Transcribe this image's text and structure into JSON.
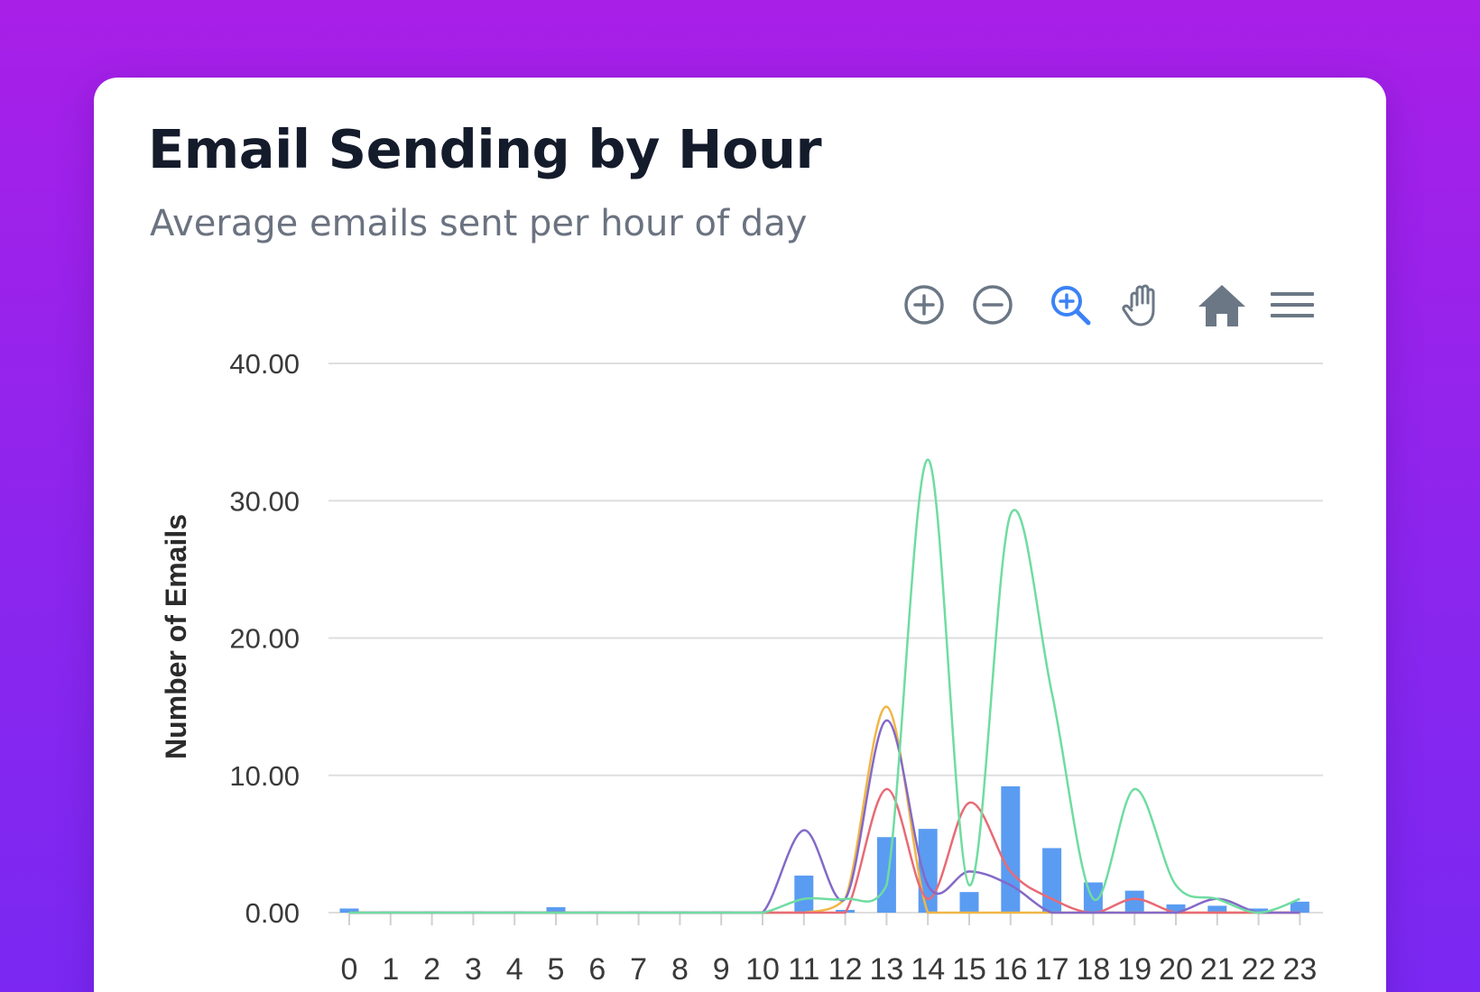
{
  "header": {
    "title": "Email Sending by Hour",
    "subtitle": "Average emails sent per hour of day"
  },
  "toolbar": {
    "tools": [
      {
        "name": "zoom-in-icon",
        "active": false
      },
      {
        "name": "zoom-out-icon",
        "active": false
      },
      {
        "name": "selection-zoom-icon",
        "active": true
      },
      {
        "name": "pan-icon",
        "active": false
      },
      {
        "name": "reset-zoom-home-icon",
        "active": false
      },
      {
        "name": "menu-icon",
        "active": false
      }
    ]
  },
  "colors": {
    "bar": "#5a9cf2",
    "active_tool": "#3b82f6",
    "inactive_tool": "#6b7785",
    "grid": "#dedede"
  },
  "chart_data": {
    "type": "bar",
    "title": "Email Sending by Hour",
    "subtitle": "Average emails sent per hour of day",
    "ylabel": "Number of Emails",
    "xlabel": "",
    "ylim": [
      0,
      40
    ],
    "yticks": [
      "0.00",
      "10.00",
      "20.00",
      "30.00",
      "40.00"
    ],
    "grid": true,
    "categories": [
      "0",
      "1",
      "2",
      "3",
      "4",
      "5",
      "6",
      "7",
      "8",
      "9",
      "10",
      "11",
      "12",
      "13",
      "14",
      "15",
      "16",
      "17",
      "18",
      "19",
      "20",
      "21",
      "22",
      "23"
    ],
    "values": [
      0.3,
      0.1,
      0.1,
      0.1,
      0.1,
      0.4,
      0.1,
      0.1,
      0.1,
      0.1,
      0.1,
      2.7,
      0.2,
      5.5,
      6.1,
      1.5,
      9.2,
      4.7,
      2.2,
      1.6,
      0.6,
      0.5,
      0.3,
      0.8
    ],
    "lines": [
      {
        "color": "#f0b646",
        "values": [
          0,
          0,
          0,
          0,
          0,
          0,
          0,
          0,
          0,
          0,
          0,
          0,
          1,
          15,
          0,
          0,
          0,
          0,
          0,
          0,
          0,
          0,
          0,
          0
        ]
      },
      {
        "color": "#e86a75",
        "values": [
          0,
          0,
          0,
          0,
          0,
          0,
          0,
          0,
          0,
          0,
          0,
          0,
          0,
          9,
          1,
          8,
          3,
          1,
          0,
          1,
          0,
          0,
          0,
          0
        ]
      },
      {
        "color": "#8469c8",
        "values": [
          0,
          0,
          0,
          0,
          0,
          0,
          0,
          0,
          0,
          0,
          0,
          6,
          1,
          14,
          2,
          3,
          2,
          0,
          0,
          0,
          0,
          1,
          0,
          0
        ]
      },
      {
        "color": "#6fdca1",
        "values": [
          0,
          0,
          0,
          0,
          0,
          0,
          0,
          0,
          0,
          0,
          0,
          1,
          1,
          2,
          33,
          2,
          29,
          16,
          1,
          9,
          2,
          1,
          0,
          1
        ]
      }
    ]
  }
}
